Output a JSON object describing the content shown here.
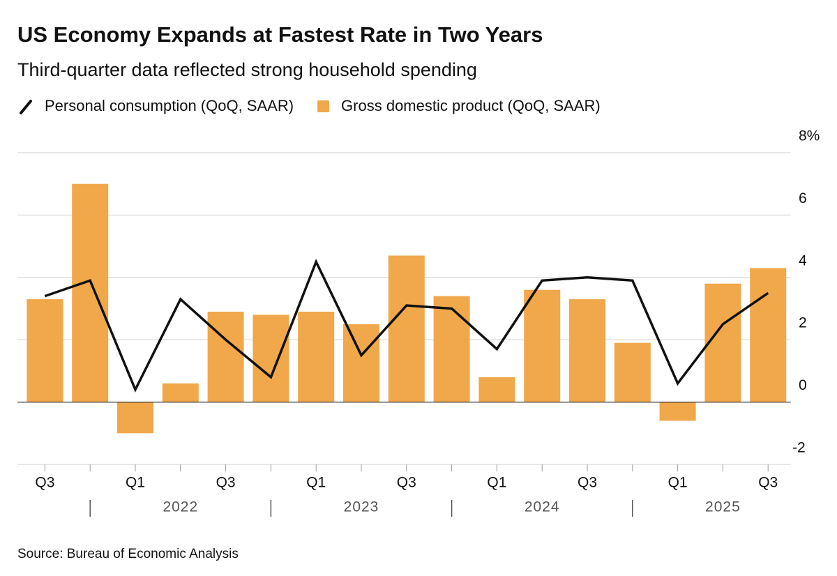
{
  "chart_data": {
    "type": "bar-line",
    "title": "US Economy Expands at Fastest Rate in Two Years",
    "subtitle": "Third-quarter data reflected strong household spending",
    "categories": [
      "Q3",
      null,
      "Q1",
      null,
      "Q3",
      null,
      "Q1",
      null,
      "Q3",
      null,
      "Q1",
      null,
      "Q3",
      null,
      "Q1",
      null,
      "Q3"
    ],
    "years": [
      "2022",
      "2023",
      "2024",
      "2025"
    ],
    "series": [
      {
        "name": "Personal consumption (QoQ, SAAR)",
        "type": "line",
        "color": "#111111",
        "values": [
          3.4,
          3.9,
          0.4,
          3.3,
          2.0,
          0.8,
          4.5,
          1.5,
          3.1,
          3.0,
          1.7,
          3.9,
          4.0,
          3.9,
          0.6,
          2.5,
          3.5
        ]
      },
      {
        "name": "Gross domestic product (QoQ, SAAR)",
        "type": "bar",
        "color": "#f0a84a",
        "values": [
          3.3,
          7.0,
          -1.0,
          0.6,
          2.9,
          2.8,
          2.9,
          2.5,
          4.7,
          3.4,
          0.8,
          3.6,
          3.3,
          1.9,
          -0.6,
          3.8,
          4.3
        ]
      }
    ],
    "ylim": [
      -2,
      8
    ],
    "yticks": [
      -2,
      0,
      2,
      4,
      6,
      {
        "value": 8,
        "label": "8%"
      }
    ],
    "grid": true,
    "source": "Source: Bureau of Economic Analysis"
  }
}
